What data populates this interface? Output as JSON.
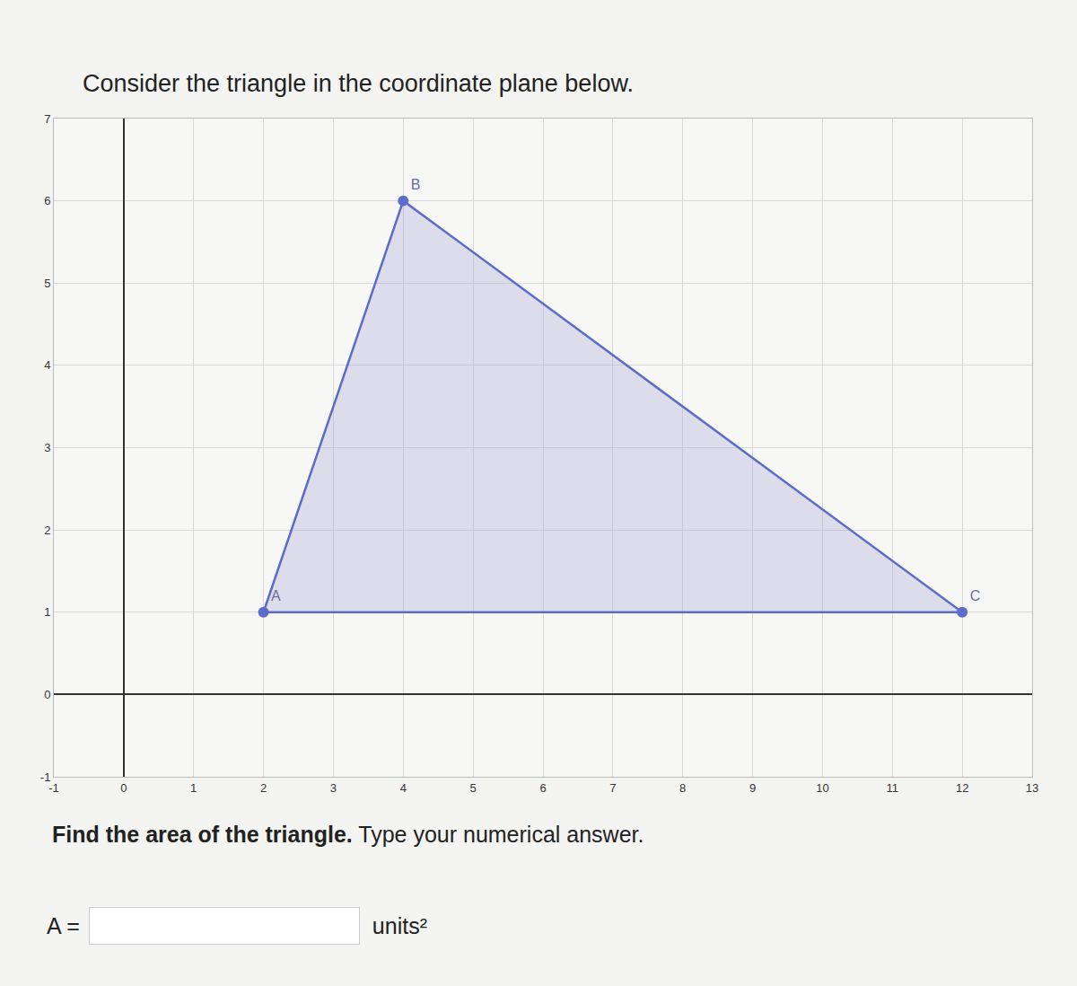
{
  "chart_data": {
    "type": "scatter",
    "title": "Consider the triangle in the coordinate plane below.",
    "x": [
      2,
      4,
      12
    ],
    "y": [
      1,
      6,
      1
    ],
    "point_labels": [
      "A",
      "B",
      "C"
    ],
    "color": "#5b6dc8",
    "xlim": [
      -1,
      13
    ],
    "xticks": [
      -1,
      0,
      1,
      2,
      3,
      4,
      5,
      6,
      7,
      8,
      9,
      10,
      11,
      12,
      13
    ],
    "ylim": [
      -1,
      7
    ],
    "yticks": [
      -1,
      0,
      1,
      2,
      3,
      4,
      5,
      6,
      7
    ],
    "grid": true
  },
  "prompt": {
    "question_bold": "Find the area of the triangle.",
    "question": "Type your numerical answer.",
    "answer_label": "A =",
    "unit": "units²"
  }
}
